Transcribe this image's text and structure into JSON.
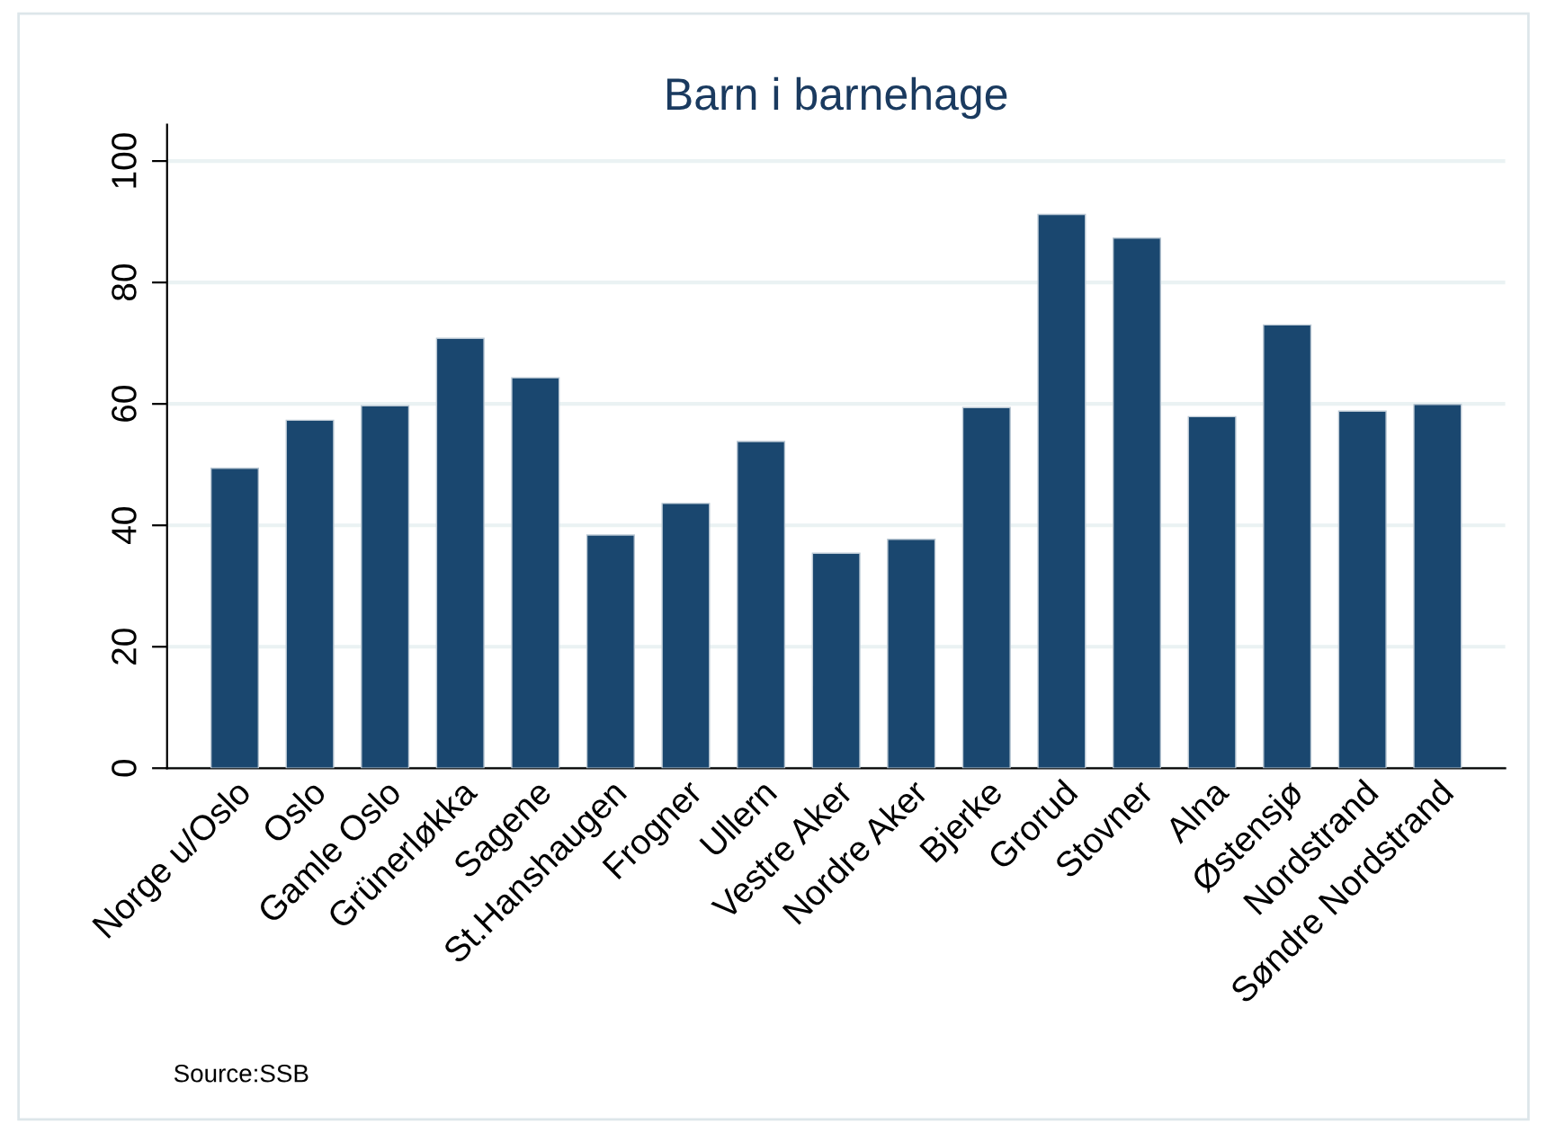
{
  "chart_data": {
    "type": "bar",
    "title": "Barn i barnehage",
    "categories": [
      "Norge u/Oslo",
      "Oslo",
      "Gamle Oslo",
      "Grünerløkka",
      "Sagene",
      "St.Hanshaugen",
      "Frogner",
      "Ullern",
      "Vestre Aker",
      "Nordre Aker",
      "Bjerke",
      "Grorud",
      "Stovner",
      "Alna",
      "Østensjø",
      "Nordstrand",
      "Søndre Nordstrand"
    ],
    "values": [
      49.4,
      57.3,
      59.7,
      70.8,
      64.3,
      38.4,
      43.6,
      53.8,
      35.4,
      37.7,
      59.4,
      91.2,
      87.3,
      57.9,
      73.0,
      58.8,
      59.9
    ],
    "color": "#1a476f",
    "ylim": [
      0,
      106
    ],
    "yticks": [
      0,
      20,
      40,
      60,
      80,
      100
    ],
    "grid": "y",
    "annotations": [
      "Source:SSB"
    ]
  }
}
